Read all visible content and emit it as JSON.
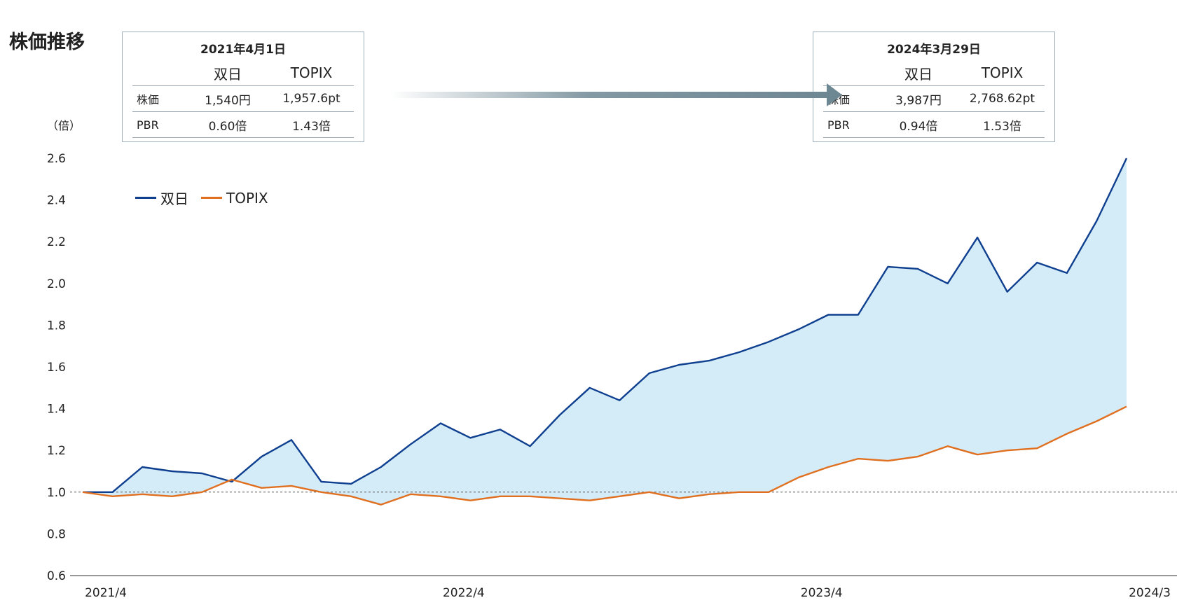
{
  "page_title": "株価推移",
  "unit_label": "（倍）",
  "start_box": {
    "date": "2021年4月1日",
    "headers": [
      "",
      "双日",
      "TOPIX"
    ],
    "rows": [
      {
        "label": "株価",
        "sojitz": "1,540円",
        "topix": "1,957.6pt"
      },
      {
        "label": "PBR",
        "sojitz": "0.60倍",
        "topix": "1.43倍"
      }
    ]
  },
  "end_box": {
    "date": "2024年3月29日",
    "headers": [
      "",
      "双日",
      "TOPIX"
    ],
    "rows": [
      {
        "label": "株価",
        "sojitz": "3,987円",
        "topix": "2,768.62pt"
      },
      {
        "label": "PBR",
        "sojitz": "0.94倍",
        "topix": "1.53倍"
      }
    ]
  },
  "colors": {
    "sojitz": "#0f3f8f",
    "topix": "#e07020",
    "fill": "#d4ebf8",
    "arrow": "#6d8793",
    "axis": "#777777",
    "baseline": "#555555"
  },
  "chart_data": {
    "type": "line",
    "title": "",
    "xlabel": "",
    "ylabel": "（倍）",
    "ylim": [
      0.6,
      2.6
    ],
    "yticks": [
      "2.6",
      "2.4",
      "2.2",
      "2.0",
      "1.8",
      "1.6",
      "1.4",
      "1.2",
      "1.0",
      "0.8",
      "0.6"
    ],
    "xticks": [
      "2021/4",
      "2022/4",
      "2023/4",
      "2024/3"
    ],
    "reference_line": 1.0,
    "legend": "top-left",
    "series": [
      {
        "name": "双日",
        "x": [
          "2021/4",
          "2021/5",
          "2021/6",
          "2021/7",
          "2021/8",
          "2021/9",
          "2021/10",
          "2021/11",
          "2021/12",
          "2022/1",
          "2022/2",
          "2022/3",
          "2022/4",
          "2022/5",
          "2022/6",
          "2022/7",
          "2022/8",
          "2022/9",
          "2022/10",
          "2022/11",
          "2022/12",
          "2023/1",
          "2023/2",
          "2023/3",
          "2023/4",
          "2023/5",
          "2023/6",
          "2023/7",
          "2023/8",
          "2023/9",
          "2023/10",
          "2023/11",
          "2023/12",
          "2024/1",
          "2024/2",
          "2024/3"
        ],
        "values": [
          1.0,
          1.0,
          1.12,
          1.1,
          1.09,
          1.05,
          1.17,
          1.25,
          1.05,
          1.04,
          1.12,
          1.23,
          1.33,
          1.26,
          1.3,
          1.22,
          1.37,
          1.5,
          1.44,
          1.57,
          1.61,
          1.63,
          1.67,
          1.72,
          1.78,
          1.85,
          1.85,
          2.08,
          2.07,
          2.0,
          2.22,
          1.96,
          2.1,
          2.05,
          2.3,
          2.6
        ]
      },
      {
        "name": "TOPIX",
        "x": [
          "2021/4",
          "2021/5",
          "2021/6",
          "2021/7",
          "2021/8",
          "2021/9",
          "2021/10",
          "2021/11",
          "2021/12",
          "2022/1",
          "2022/2",
          "2022/3",
          "2022/4",
          "2022/5",
          "2022/6",
          "2022/7",
          "2022/8",
          "2022/9",
          "2022/10",
          "2022/11",
          "2022/12",
          "2023/1",
          "2023/2",
          "2023/3",
          "2023/4",
          "2023/5",
          "2023/6",
          "2023/7",
          "2023/8",
          "2023/9",
          "2023/10",
          "2023/11",
          "2023/12",
          "2024/1",
          "2024/2",
          "2024/3"
        ],
        "values": [
          1.0,
          0.98,
          0.99,
          0.98,
          1.0,
          1.06,
          1.02,
          1.03,
          1.0,
          0.98,
          0.94,
          0.99,
          0.98,
          0.96,
          0.98,
          0.98,
          0.97,
          0.96,
          0.98,
          1.0,
          0.97,
          0.99,
          1.0,
          1.0,
          1.07,
          1.12,
          1.16,
          1.15,
          1.17,
          1.22,
          1.18,
          1.2,
          1.21,
          1.28,
          1.34,
          1.41
        ]
      }
    ]
  }
}
